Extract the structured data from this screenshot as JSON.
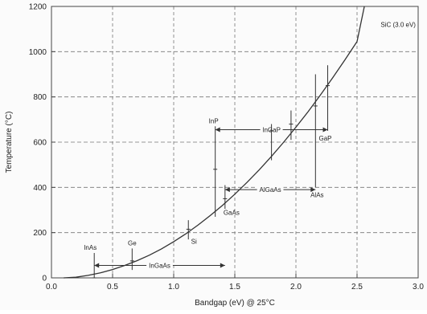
{
  "chart_data": {
    "type": "line",
    "title": "",
    "xlabel": "Bandgap (eV) @ 25°C",
    "ylabel": "Temperature (°C)",
    "xlim": [
      0,
      3.0
    ],
    "ylim": [
      0,
      1200
    ],
    "x_ticks": [
      0.0,
      0.5,
      1.0,
      1.5,
      2.0,
      2.5,
      3.0
    ],
    "x_tick_labels": [
      "0.0",
      "0.5",
      "1.0",
      "1.5",
      "2.0",
      "2.5",
      "3.0"
    ],
    "y_ticks": [
      0,
      200,
      400,
      600,
      800,
      1000,
      1200
    ],
    "y_tick_labels": [
      "0",
      "200",
      "400",
      "600",
      "800",
      "1000",
      "1200"
    ],
    "grid": true,
    "legend": "none",
    "colors": {
      "curve": "#333333",
      "grid": "#777777",
      "annotation": "#333333",
      "text": "#222222"
    },
    "series": [
      {
        "x": [
          0.1,
          0.2,
          0.3,
          0.4,
          0.5,
          0.6,
          0.7,
          0.8,
          0.9,
          1.0,
          1.1,
          1.2,
          1.3,
          1.4,
          1.5,
          1.6,
          1.7,
          1.8,
          1.9,
          2.0,
          2.1,
          2.2,
          2.3,
          2.4,
          2.5,
          2.56
        ],
        "y": [
          0,
          3,
          11,
          22,
          37,
          55,
          76,
          100,
          128,
          160,
          195,
          234,
          276,
          321,
          370,
          422,
          478,
          537,
          600,
          666,
          735,
          808,
          884,
          963,
          1045,
          1200
        ]
      }
    ],
    "points": [
      {
        "label": "InAs",
        "x": 0.35,
        "y": 0,
        "err_low": 0,
        "err_high": 110
      },
      {
        "label": "Ge",
        "x": 0.66,
        "y": 75,
        "err_low": 35,
        "err_high": 130
      },
      {
        "label": "Si",
        "x": 1.12,
        "y": 215,
        "err_low": 170,
        "err_high": 255
      },
      {
        "label": "InP",
        "x": 1.34,
        "y": 480,
        "err_low": 270,
        "err_high": 670
      },
      {
        "label": "GaAs",
        "x": 1.42,
        "y": 350,
        "err_low": 305,
        "err_high": 410
      },
      {
        "label": "AlAs",
        "x": 2.16,
        "y": 760,
        "err_low": 400,
        "err_high": 900
      },
      {
        "label": "GaP",
        "x": 2.26,
        "y": 850,
        "err_low": 650,
        "err_high": 940
      },
      {
        "label": "",
        "x": 1.8,
        "y": 650,
        "err_low": 520,
        "err_high": 680
      },
      {
        "label": "",
        "x": 1.96,
        "y": 680,
        "err_low": 610,
        "err_high": 740
      }
    ],
    "ranges": [
      {
        "label": "InGaAs",
        "x_start": 0.35,
        "x_end": 1.42,
        "y": 55
      },
      {
        "label": "AlGaAs",
        "x_start": 1.42,
        "x_end": 2.16,
        "y": 390
      },
      {
        "label": "InGaP",
        "x_start": 1.34,
        "x_end": 2.26,
        "y": 655
      }
    ],
    "annotations": [
      {
        "text": "SiC (3.0 eV)",
        "x": 2.98,
        "y": 1120
      }
    ]
  }
}
